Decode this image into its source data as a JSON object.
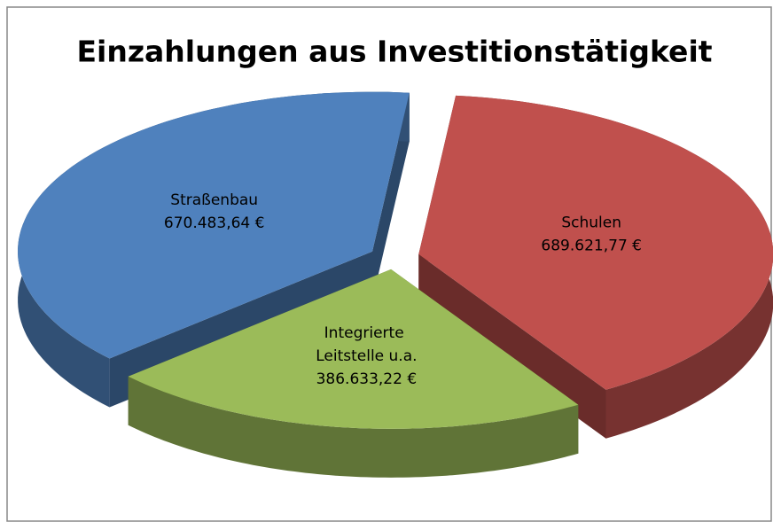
{
  "chart_data": {
    "type": "pie3d",
    "title": "Einzahlungen aus Investitionstätigkeit",
    "categories": [
      "Schulen",
      "Integrierte Leitstelle u.a.",
      "Straßenbau"
    ],
    "values": [
      689621.77,
      386633.22,
      670483.64
    ],
    "value_labels": [
      "689.621,77 €",
      "386.633,22 €",
      "670.483,64 €"
    ],
    "colors": [
      "#c0504d",
      "#9bbb59",
      "#4f81bd"
    ]
  }
}
